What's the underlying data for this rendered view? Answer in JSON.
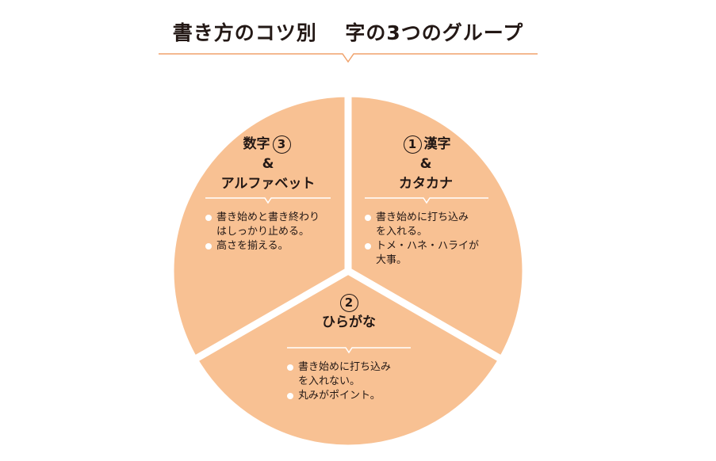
{
  "title": "書き方のコツ別　 字の3つのグループ",
  "colors": {
    "segment_fill": "#F8C193",
    "accent_line": "#F0A26B",
    "text": "#231815",
    "divider": "#FFFFFF"
  },
  "groups": [
    {
      "number": "1",
      "name_line1": "漢字",
      "name_line2": "&",
      "name_line3": "カタカナ",
      "notes": [
        "書き始めに打ち込み\nを入れる。",
        "トメ・ハネ・ハライが\n大事。"
      ]
    },
    {
      "number": "2",
      "name_line1": "ひらがな",
      "notes": [
        "書き始めに打ち込み\nを入れない。",
        "丸みがポイント。"
      ]
    },
    {
      "number": "3",
      "name_line1": "数字",
      "name_line2": "&",
      "name_line3": "アルファベット",
      "notes": [
        "書き始めと書き終わり\nはしっかり止める。",
        "高さを揃える。"
      ]
    }
  ]
}
